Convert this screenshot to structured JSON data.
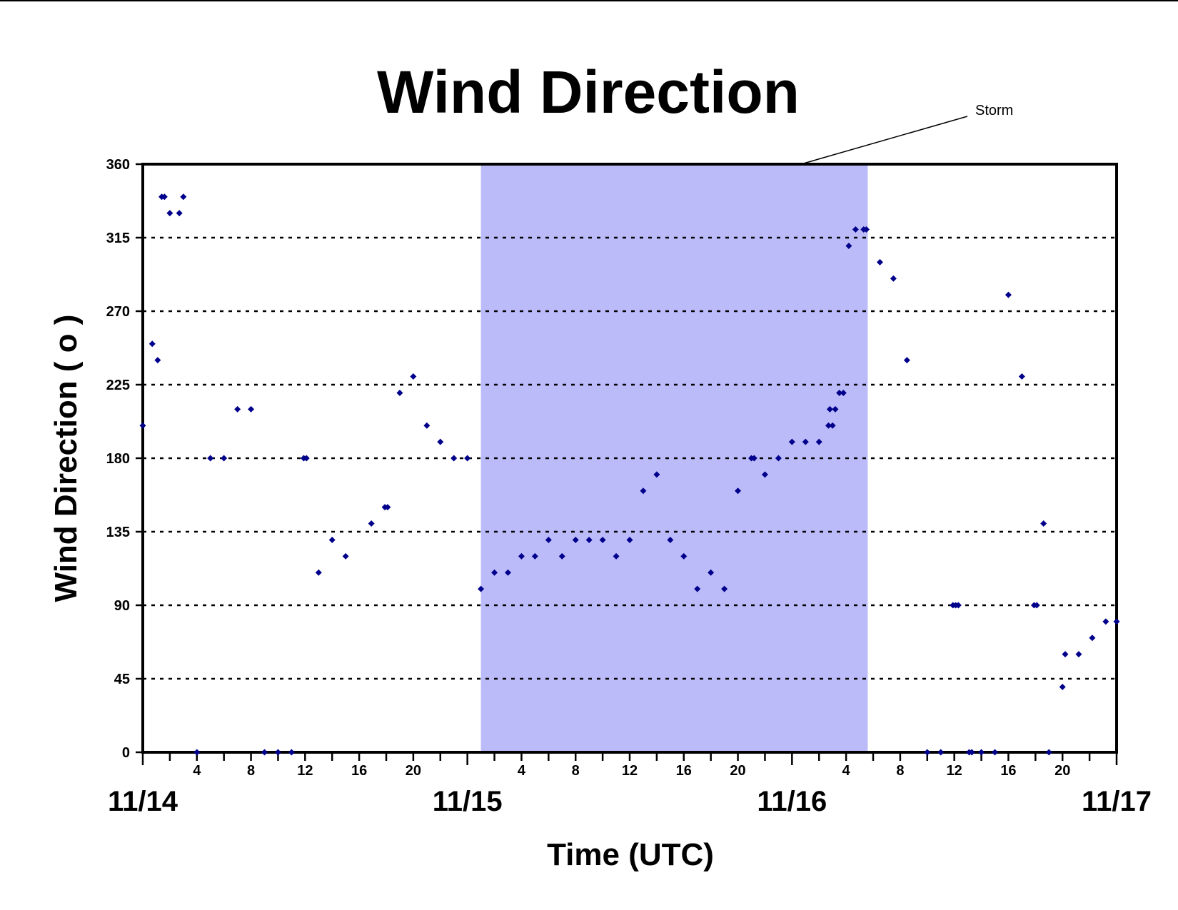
{
  "chart_data": {
    "type": "scatter",
    "title": "Wind Direction",
    "xlabel": "Time (UTC)",
    "ylabel": "Wind Direction ( o )",
    "ylim": [
      0,
      360
    ],
    "yticks": [
      0,
      45,
      90,
      135,
      180,
      225,
      270,
      315,
      360
    ],
    "xlim_hours": [
      0,
      72
    ],
    "x_unit": "hours since 11/14 00:00 UTC",
    "hour_ticks": [
      {
        "h": 4,
        "label": "4"
      },
      {
        "h": 8,
        "label": "8"
      },
      {
        "h": 12,
        "label": "12"
      },
      {
        "h": 16,
        "label": "16"
      },
      {
        "h": 20,
        "label": "20"
      },
      {
        "h": 28,
        "label": "4"
      },
      {
        "h": 32,
        "label": "8"
      },
      {
        "h": 36,
        "label": "12"
      },
      {
        "h": 40,
        "label": "16"
      },
      {
        "h": 44,
        "label": "20"
      },
      {
        "h": 52,
        "label": "4"
      },
      {
        "h": 56,
        "label": "8"
      },
      {
        "h": 60,
        "label": "12"
      },
      {
        "h": 64,
        "label": "16"
      },
      {
        "h": 68,
        "label": "20"
      }
    ],
    "day_labels": [
      {
        "h": 0,
        "label": "11/14"
      },
      {
        "h": 24,
        "label": "11/15"
      },
      {
        "h": 48,
        "label": "11/16"
      },
      {
        "h": 72,
        "label": "11/17"
      }
    ],
    "grid": "horizontal dotted",
    "storm": {
      "label": "Storm",
      "start_hour": 25,
      "end_hour": 53.6,
      "color": "#bbbbfa"
    },
    "marker_color": "#00008b",
    "points": [
      [
        0,
        200
      ],
      [
        0.7,
        250
      ],
      [
        1.1,
        240
      ],
      [
        1.4,
        340
      ],
      [
        1.6,
        340
      ],
      [
        2.0,
        330
      ],
      [
        2.7,
        330
      ],
      [
        3.0,
        340
      ],
      [
        4,
        0
      ],
      [
        5,
        180
      ],
      [
        6,
        180
      ],
      [
        7,
        210
      ],
      [
        8,
        210
      ],
      [
        9,
        0
      ],
      [
        10,
        0
      ],
      [
        11,
        0
      ],
      [
        11.9,
        180
      ],
      [
        12.1,
        180
      ],
      [
        13,
        110
      ],
      [
        14,
        130
      ],
      [
        15,
        120
      ],
      [
        16.9,
        140
      ],
      [
        17.9,
        150
      ],
      [
        18.1,
        150
      ],
      [
        19,
        220
      ],
      [
        20,
        230
      ],
      [
        21,
        200
      ],
      [
        22,
        190
      ],
      [
        23,
        180
      ],
      [
        24,
        180
      ],
      [
        25,
        100
      ],
      [
        26,
        110
      ],
      [
        27,
        110
      ],
      [
        28,
        120
      ],
      [
        29,
        120
      ],
      [
        30,
        130
      ],
      [
        31,
        120
      ],
      [
        32,
        130
      ],
      [
        33,
        130
      ],
      [
        34,
        130
      ],
      [
        35,
        120
      ],
      [
        36,
        130
      ],
      [
        37,
        160
      ],
      [
        38,
        170
      ],
      [
        39,
        130
      ],
      [
        40,
        120
      ],
      [
        41,
        100
      ],
      [
        42,
        110
      ],
      [
        43,
        100
      ],
      [
        44,
        160
      ],
      [
        45,
        180
      ],
      [
        45.2,
        180
      ],
      [
        46,
        170
      ],
      [
        47,
        180
      ],
      [
        48,
        190
      ],
      [
        49,
        190
      ],
      [
        50,
        190
      ],
      [
        50.7,
        200
      ],
      [
        50.8,
        210
      ],
      [
        51.0,
        200
      ],
      [
        51.2,
        210
      ],
      [
        51.5,
        220
      ],
      [
        51.8,
        220
      ],
      [
        52.2,
        310
      ],
      [
        52.7,
        320
      ],
      [
        53.3,
        320
      ],
      [
        53.5,
        320
      ],
      [
        54.5,
        300
      ],
      [
        55.5,
        290
      ],
      [
        56.5,
        240
      ],
      [
        58,
        0
      ],
      [
        59,
        0
      ],
      [
        59.9,
        90
      ],
      [
        60.1,
        90
      ],
      [
        60.3,
        90
      ],
      [
        61.1,
        0
      ],
      [
        61.3,
        0
      ],
      [
        62,
        0
      ],
      [
        63,
        0
      ],
      [
        64,
        280
      ],
      [
        65,
        230
      ],
      [
        65.9,
        90
      ],
      [
        66.1,
        90
      ],
      [
        66.6,
        140
      ],
      [
        67,
        0
      ],
      [
        68,
        40
      ],
      [
        68.2,
        60
      ],
      [
        69.2,
        60
      ],
      [
        70.2,
        70
      ],
      [
        71.2,
        80
      ],
      [
        72,
        80
      ]
    ]
  }
}
